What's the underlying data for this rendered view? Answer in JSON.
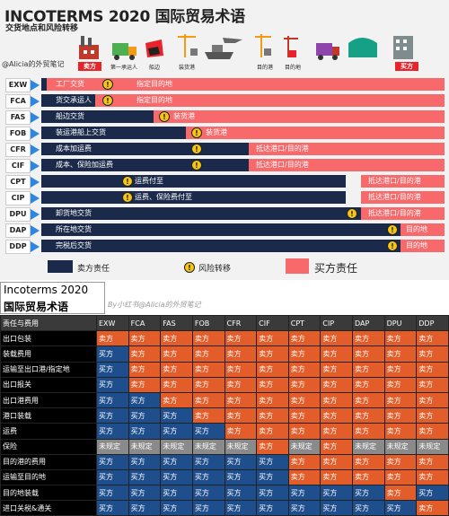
{
  "header": {
    "title": "INCOTERMS 2020 国际贸易术语",
    "subtitle": "交货地点和风险转移",
    "author": "@Alicia的外贸笔记"
  },
  "icons": [
    {
      "name": "factory-icon",
      "label": "卖方"
    },
    {
      "name": "truck-icon",
      "label": "第一承运人"
    },
    {
      "name": "ship-side-icon",
      "label": "船边"
    },
    {
      "name": "crane-icon",
      "label": "装货港"
    },
    {
      "name": "ship-plane-icon",
      "label": ""
    },
    {
      "name": "crane-dest-icon",
      "label": "目的港"
    },
    {
      "name": "crane-unload-icon",
      "label": "目的地"
    },
    {
      "name": "truck-dest-icon",
      "label": ""
    },
    {
      "name": "warehouse-icon",
      "label": ""
    },
    {
      "name": "building-icon",
      "label": "买方"
    }
  ],
  "rows": [
    {
      "term": "EXW",
      "seller_label": "工厂交货",
      "buyer_label": "指定目的地",
      "buyer_right": ""
    },
    {
      "term": "FCA",
      "seller_label": "货交承运人",
      "buyer_label": "指定目的地",
      "buyer_right": ""
    },
    {
      "term": "FAS",
      "seller_label": "船边交货",
      "buyer_label": "装货港",
      "buyer_right": ""
    },
    {
      "term": "FOB",
      "seller_label": "装运港船上交货",
      "buyer_label": "装货港",
      "buyer_right": ""
    },
    {
      "term": "CFR",
      "seller_label": "成本加运费",
      "buyer_label": "",
      "buyer_right": "抵达港口/目的港"
    },
    {
      "term": "CIF",
      "seller_label": "成本、保险加运费",
      "buyer_label": "",
      "buyer_right": "抵达港口/目的港"
    },
    {
      "term": "CPT",
      "seller_label": "运费付至",
      "buyer_label": "",
      "buyer_right": "抵达港口/目的港"
    },
    {
      "term": "CIP",
      "seller_label": "运费、保险费付至",
      "buyer_label": "",
      "buyer_right": "抵达港口/目的港"
    },
    {
      "term": "DPU",
      "seller_label": "卸货地交货",
      "buyer_label": "",
      "buyer_right": "抵达港口/目的港"
    },
    {
      "term": "DAP",
      "seller_label": "所在地交货",
      "buyer_label": "",
      "buyer_right": "目的地"
    },
    {
      "term": "DDP",
      "seller_label": "完税后交货",
      "buyer_label": "",
      "buyer_right": "目的地"
    }
  ],
  "legend": {
    "seller": "卖方责任",
    "risk": "风险转移",
    "buyer": "买方责任"
  },
  "colors": {
    "seller": "#1b2a4a",
    "buyer": "#f8696b",
    "warning": "#f5c518",
    "table_seller": "#e35d2a",
    "table_buyer": "#1f4e8c",
    "table_none": "#8a8a8a"
  },
  "table": {
    "title1": "Incoterms 2020",
    "title2": "国际贸易术语",
    "watermark": "By小红书@Alicia的外贸笔记",
    "corner": "责任与费用",
    "headers": [
      "EXW",
      "FCA",
      "FAS",
      "FOB",
      "CFR",
      "CIF",
      "CPT",
      "CIP",
      "DAP",
      "DPU",
      "DDP"
    ],
    "rows": [
      {
        "label": "出口包装",
        "cells": [
          "卖方",
          "卖方",
          "卖方",
          "卖方",
          "卖方",
          "卖方",
          "卖方",
          "卖方",
          "卖方",
          "卖方",
          "卖方"
        ]
      },
      {
        "label": "装载费用",
        "cells": [
          "买方",
          "卖方",
          "卖方",
          "卖方",
          "卖方",
          "卖方",
          "卖方",
          "卖方",
          "卖方",
          "卖方",
          "卖方"
        ]
      },
      {
        "label": "运输至出口港/指定地",
        "cells": [
          "买方",
          "卖方",
          "卖方",
          "卖方",
          "卖方",
          "卖方",
          "卖方",
          "卖方",
          "卖方",
          "卖方",
          "卖方"
        ]
      },
      {
        "label": "出口报关",
        "cells": [
          "买方",
          "卖方",
          "卖方",
          "卖方",
          "卖方",
          "卖方",
          "卖方",
          "卖方",
          "卖方",
          "卖方",
          "卖方"
        ]
      },
      {
        "label": "出口港费用",
        "cells": [
          "买方",
          "买方",
          "卖方",
          "卖方",
          "卖方",
          "卖方",
          "卖方",
          "卖方",
          "卖方",
          "卖方",
          "卖方"
        ]
      },
      {
        "label": "港口装载",
        "cells": [
          "买方",
          "买方",
          "买方",
          "卖方",
          "卖方",
          "卖方",
          "卖方",
          "卖方",
          "卖方",
          "卖方",
          "卖方"
        ]
      },
      {
        "label": "运费",
        "cells": [
          "买方",
          "买方",
          "买方",
          "买方",
          "卖方",
          "卖方",
          "卖方",
          "卖方",
          "卖方",
          "卖方",
          "卖方"
        ]
      },
      {
        "label": "保险",
        "cells": [
          "未规定",
          "未规定",
          "未规定",
          "未规定",
          "未规定",
          "卖方",
          "未规定",
          "卖方",
          "未规定",
          "未规定",
          "未规定"
        ]
      },
      {
        "label": "目的港的费用",
        "cells": [
          "买方",
          "买方",
          "买方",
          "买方",
          "买方",
          "买方",
          "卖方",
          "卖方",
          "卖方",
          "卖方",
          "卖方"
        ]
      },
      {
        "label": "运输至目的地",
        "cells": [
          "买方",
          "买方",
          "买方",
          "买方",
          "买方",
          "买方",
          "卖方",
          "卖方",
          "卖方",
          "卖方",
          "卖方"
        ]
      },
      {
        "label": "目的地装载",
        "cells": [
          "买方",
          "买方",
          "买方",
          "买方",
          "买方",
          "买方",
          "买方",
          "买方",
          "买方",
          "卖方",
          "买方"
        ]
      },
      {
        "label": "进口关税&通关",
        "cells": [
          "买方",
          "买方",
          "买方",
          "买方",
          "买方",
          "买方",
          "买方",
          "买方",
          "买方",
          "买方",
          "卖方"
        ]
      }
    ]
  }
}
